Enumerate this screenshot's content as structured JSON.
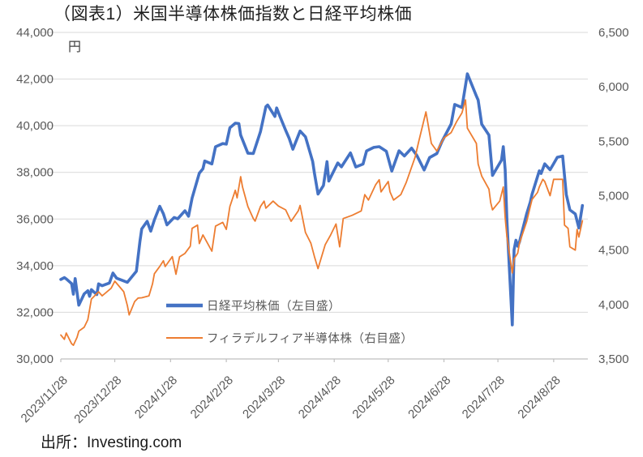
{
  "header": {
    "title": "（図表1）米国半導体株価指数と日経平均株価"
  },
  "footer": {
    "source": "出所：Investing.com"
  },
  "colors": {
    "nikkei_line": "#4472C4",
    "sox_line": "#ED7D31",
    "gridline": "#D9D9D9",
    "axis_line": "#BFBFBF",
    "axis_text": "#595959",
    "title_text": "#1f1f1f"
  },
  "chart_data": {
    "type": "line",
    "title": "（図表1）米国半導体株価指数と日経平均株価",
    "unit_label": "円",
    "source": "出所：Investing.com",
    "grid": true,
    "left_axis": {
      "min": 30000,
      "max": 44000,
      "tick_step": 2000,
      "tick_labels": [
        "44,000",
        "42,000",
        "40,000",
        "38,000",
        "36,000",
        "34,000",
        "32,000",
        "30,000"
      ]
    },
    "right_axis": {
      "min": 3500,
      "max": 6500,
      "tick_step": 500,
      "tick_labels": [
        "6,500",
        "6,000",
        "5,500",
        "5,000",
        "4,500",
        "4,000",
        "3,500"
      ]
    },
    "x_axis": {
      "start_date": "2023-11-28",
      "axis_end_date": "2024-09-16",
      "tick_dates": [
        "2023-11-28",
        "2023-12-28",
        "2024-01-28",
        "2024-02-28",
        "2024-03-28",
        "2024-04-28",
        "2024-05-28",
        "2024-06-28",
        "2024-07-28",
        "2024-08-28"
      ],
      "tick_labels": [
        "2023/11/28",
        "2023/12/28",
        "2024/1/28",
        "2024/2/28",
        "2024/3/28",
        "2024/4/28",
        "2024/5/28",
        "2024/6/28",
        "2024/7/28",
        "2024/8/28"
      ]
    },
    "legend": {
      "position": "inside-center-left",
      "entries": [
        {
          "label": "日経平均株価（左目盛）",
          "color": "#4472C4",
          "stroke_width": 4.5
        },
        {
          "label": "フィラデルフィア半導体株（右目盛）",
          "color": "#ED7D31",
          "stroke_width": 2
        }
      ]
    },
    "series": [
      {
        "name": "日経平均株価（左目盛）",
        "id": "nikkei",
        "axis": "left",
        "color": "#4472C4",
        "stroke_width": 3.6,
        "points": [
          [
            "2023-11-28",
            33408
          ],
          [
            "2023-11-30",
            33487
          ],
          [
            "2023-12-01",
            33432
          ],
          [
            "2023-12-04",
            33231
          ],
          [
            "2023-12-05",
            32776
          ],
          [
            "2023-12-06",
            33445
          ],
          [
            "2023-12-07",
            32858
          ],
          [
            "2023-12-08",
            32308
          ],
          [
            "2023-12-11",
            32791
          ],
          [
            "2023-12-13",
            32926
          ],
          [
            "2023-12-14",
            32686
          ],
          [
            "2023-12-15",
            32970
          ],
          [
            "2023-12-18",
            32758
          ],
          [
            "2023-12-19",
            33219
          ],
          [
            "2023-12-21",
            33140
          ],
          [
            "2023-12-25",
            33254
          ],
          [
            "2023-12-27",
            33681
          ],
          [
            "2023-12-29",
            33464
          ],
          [
            "2024-01-04",
            33288
          ],
          [
            "2024-01-09",
            33763
          ],
          [
            "2024-01-11",
            35049
          ],
          [
            "2024-01-12",
            35577
          ],
          [
            "2024-01-15",
            35901
          ],
          [
            "2024-01-17",
            35477
          ],
          [
            "2024-01-19",
            35963
          ],
          [
            "2024-01-22",
            36546
          ],
          [
            "2024-01-24",
            36226
          ],
          [
            "2024-01-26",
            35751
          ],
          [
            "2024-01-30",
            36065
          ],
          [
            "2024-02-01",
            36011
          ],
          [
            "2024-02-05",
            36354
          ],
          [
            "2024-02-07",
            36119
          ],
          [
            "2024-02-09",
            36897
          ],
          [
            "2024-02-13",
            37963
          ],
          [
            "2024-02-15",
            38157
          ],
          [
            "2024-02-16",
            38487
          ],
          [
            "2024-02-20",
            38363
          ],
          [
            "2024-02-22",
            39098
          ],
          [
            "2024-02-26",
            39233
          ],
          [
            "2024-02-28",
            39208
          ],
          [
            "2024-03-01",
            39910
          ],
          [
            "2024-03-04",
            40109
          ],
          [
            "2024-03-06",
            40091
          ],
          [
            "2024-03-07",
            39598
          ],
          [
            "2024-03-11",
            38820
          ],
          [
            "2024-03-14",
            38808
          ],
          [
            "2024-03-18",
            39740
          ],
          [
            "2024-03-21",
            40815
          ],
          [
            "2024-03-22",
            40888
          ],
          [
            "2024-03-26",
            40398
          ],
          [
            "2024-03-27",
            40762
          ],
          [
            "2024-03-29",
            40369
          ],
          [
            "2024-04-01",
            39803
          ],
          [
            "2024-04-03",
            39452
          ],
          [
            "2024-04-05",
            38992
          ],
          [
            "2024-04-09",
            39773
          ],
          [
            "2024-04-12",
            39524
          ],
          [
            "2024-04-16",
            38471
          ],
          [
            "2024-04-17",
            37962
          ],
          [
            "2024-04-19",
            37068
          ],
          [
            "2024-04-22",
            37439
          ],
          [
            "2024-04-24",
            38460
          ],
          [
            "2024-04-25",
            37628
          ],
          [
            "2024-04-30",
            38405
          ],
          [
            "2024-05-02",
            38236
          ],
          [
            "2024-05-07",
            38835
          ],
          [
            "2024-05-10",
            38229
          ],
          [
            "2024-05-14",
            38356
          ],
          [
            "2024-05-16",
            38920
          ],
          [
            "2024-05-20",
            39069
          ],
          [
            "2024-05-23",
            39103
          ],
          [
            "2024-05-27",
            38900
          ],
          [
            "2024-05-30",
            38054
          ],
          [
            "2024-06-03",
            38923
          ],
          [
            "2024-06-06",
            38703
          ],
          [
            "2024-06-10",
            39038
          ],
          [
            "2024-06-13",
            38720
          ],
          [
            "2024-06-17",
            38102
          ],
          [
            "2024-06-20",
            38633
          ],
          [
            "2024-06-24",
            38805
          ],
          [
            "2024-06-27",
            39341
          ],
          [
            "2024-07-02",
            40074
          ],
          [
            "2024-07-04",
            40913
          ],
          [
            "2024-07-08",
            40781
          ],
          [
            "2024-07-11",
            42224
          ],
          [
            "2024-07-16",
            41275
          ],
          [
            "2024-07-17",
            41098
          ],
          [
            "2024-07-19",
            40063
          ],
          [
            "2024-07-23",
            39595
          ],
          [
            "2024-07-25",
            37869
          ],
          [
            "2024-07-30",
            38526
          ],
          [
            "2024-07-31",
            39101
          ],
          [
            "2024-08-01",
            38126
          ],
          [
            "2024-08-02",
            35909
          ],
          [
            "2024-08-05",
            31458
          ],
          [
            "2024-08-06",
            34675
          ],
          [
            "2024-08-07",
            35090
          ],
          [
            "2024-08-08",
            34831
          ],
          [
            "2024-08-09",
            35025
          ],
          [
            "2024-08-13",
            36232
          ],
          [
            "2024-08-15",
            36726
          ],
          [
            "2024-08-16",
            37062
          ],
          [
            "2024-08-20",
            38062
          ],
          [
            "2024-08-21",
            37952
          ],
          [
            "2024-08-23",
            38364
          ],
          [
            "2024-08-26",
            38110
          ],
          [
            "2024-08-28",
            38371
          ],
          [
            "2024-08-30",
            38648
          ],
          [
            "2024-09-02",
            38700
          ],
          [
            "2024-09-04",
            37047
          ],
          [
            "2024-09-06",
            36391
          ],
          [
            "2024-09-09",
            36215
          ],
          [
            "2024-09-11",
            35619
          ],
          [
            "2024-09-13",
            36581
          ]
        ]
      },
      {
        "name": "フィラデルフィア半導体株（右目盛）",
        "id": "sox",
        "axis": "right",
        "color": "#ED7D31",
        "stroke_width": 1.8,
        "points": [
          [
            "2023-11-28",
            3720
          ],
          [
            "2023-11-30",
            3680
          ],
          [
            "2023-12-01",
            3738
          ],
          [
            "2023-12-04",
            3640
          ],
          [
            "2023-12-05",
            3626
          ],
          [
            "2023-12-07",
            3698
          ],
          [
            "2023-12-08",
            3755
          ],
          [
            "2023-12-11",
            3791
          ],
          [
            "2023-12-13",
            3860
          ],
          [
            "2023-12-14",
            3954
          ],
          [
            "2023-12-15",
            4050
          ],
          [
            "2023-12-19",
            4117
          ],
          [
            "2023-12-21",
            4080
          ],
          [
            "2023-12-26",
            4150
          ],
          [
            "2023-12-28",
            4215
          ],
          [
            "2024-01-02",
            4118
          ],
          [
            "2024-01-04",
            3990
          ],
          [
            "2024-01-05",
            3904
          ],
          [
            "2024-01-08",
            4026
          ],
          [
            "2024-01-10",
            4060
          ],
          [
            "2024-01-12",
            4062
          ],
          [
            "2024-01-16",
            4080
          ],
          [
            "2024-01-18",
            4190
          ],
          [
            "2024-01-19",
            4283
          ],
          [
            "2024-01-22",
            4350
          ],
          [
            "2024-01-24",
            4402
          ],
          [
            "2024-01-25",
            4349
          ],
          [
            "2024-01-29",
            4440
          ],
          [
            "2024-01-31",
            4278
          ],
          [
            "2024-02-02",
            4438
          ],
          [
            "2024-02-05",
            4470
          ],
          [
            "2024-02-08",
            4536
          ],
          [
            "2024-02-09",
            4700
          ],
          [
            "2024-02-12",
            4730
          ],
          [
            "2024-02-13",
            4560
          ],
          [
            "2024-02-15",
            4640
          ],
          [
            "2024-02-20",
            4490
          ],
          [
            "2024-02-22",
            4720
          ],
          [
            "2024-02-26",
            4755
          ],
          [
            "2024-02-28",
            4690
          ],
          [
            "2024-03-01",
            4900
          ],
          [
            "2024-03-04",
            5050
          ],
          [
            "2024-03-05",
            4980
          ],
          [
            "2024-03-07",
            5175
          ],
          [
            "2024-03-08",
            5080
          ],
          [
            "2024-03-11",
            4900
          ],
          [
            "2024-03-14",
            4790
          ],
          [
            "2024-03-15",
            4766
          ],
          [
            "2024-03-18",
            4900
          ],
          [
            "2024-03-20",
            4950
          ],
          [
            "2024-03-21",
            4885
          ],
          [
            "2024-03-25",
            4950
          ],
          [
            "2024-03-28",
            4905
          ],
          [
            "2024-04-01",
            4870
          ],
          [
            "2024-04-04",
            4765
          ],
          [
            "2024-04-08",
            4860
          ],
          [
            "2024-04-09",
            4910
          ],
          [
            "2024-04-12",
            4662
          ],
          [
            "2024-04-15",
            4563
          ],
          [
            "2024-04-17",
            4440
          ],
          [
            "2024-04-19",
            4330
          ],
          [
            "2024-04-23",
            4550
          ],
          [
            "2024-04-26",
            4640
          ],
          [
            "2024-04-29",
            4740
          ],
          [
            "2024-05-01",
            4530
          ],
          [
            "2024-05-03",
            4790
          ],
          [
            "2024-05-08",
            4820
          ],
          [
            "2024-05-13",
            4860
          ],
          [
            "2024-05-15",
            5010
          ],
          [
            "2024-05-17",
            4960
          ],
          [
            "2024-05-21",
            5100
          ],
          [
            "2024-05-23",
            5147
          ],
          [
            "2024-05-24",
            5035
          ],
          [
            "2024-05-28",
            5130
          ],
          [
            "2024-05-29",
            5035
          ],
          [
            "2024-05-31",
            4960
          ],
          [
            "2024-06-04",
            5010
          ],
          [
            "2024-06-07",
            5120
          ],
          [
            "2024-06-12",
            5355
          ],
          [
            "2024-06-14",
            5500
          ],
          [
            "2024-06-18",
            5770
          ],
          [
            "2024-06-21",
            5480
          ],
          [
            "2024-06-24",
            5410
          ],
          [
            "2024-06-28",
            5530
          ],
          [
            "2024-07-02",
            5580
          ],
          [
            "2024-07-05",
            5680
          ],
          [
            "2024-07-08",
            5760
          ],
          [
            "2024-07-10",
            5880
          ],
          [
            "2024-07-11",
            5620
          ],
          [
            "2024-07-16",
            5480
          ],
          [
            "2024-07-17",
            5290
          ],
          [
            "2024-07-19",
            5180
          ],
          [
            "2024-07-23",
            5060
          ],
          [
            "2024-07-24",
            4936
          ],
          [
            "2024-07-25",
            4870
          ],
          [
            "2024-07-29",
            4950
          ],
          [
            "2024-07-31",
            5080
          ],
          [
            "2024-08-01",
            4800
          ],
          [
            "2024-08-02",
            4620
          ],
          [
            "2024-08-05",
            4290
          ],
          [
            "2024-08-06",
            4420
          ],
          [
            "2024-08-08",
            4472
          ],
          [
            "2024-08-09",
            4566
          ],
          [
            "2024-08-13",
            4763
          ],
          [
            "2024-08-15",
            4900
          ],
          [
            "2024-08-16",
            4965
          ],
          [
            "2024-08-19",
            5030
          ],
          [
            "2024-08-20",
            5080
          ],
          [
            "2024-08-22",
            5150
          ],
          [
            "2024-08-23",
            5130
          ],
          [
            "2024-08-26",
            5000
          ],
          [
            "2024-08-28",
            5150
          ],
          [
            "2024-09-02",
            5150
          ],
          [
            "2024-09-03",
            4730
          ],
          [
            "2024-09-05",
            4700
          ],
          [
            "2024-09-06",
            4530
          ],
          [
            "2024-09-09",
            4500
          ],
          [
            "2024-09-10",
            4690
          ],
          [
            "2024-09-11",
            4620
          ],
          [
            "2024-09-13",
            4770
          ]
        ]
      }
    ]
  }
}
